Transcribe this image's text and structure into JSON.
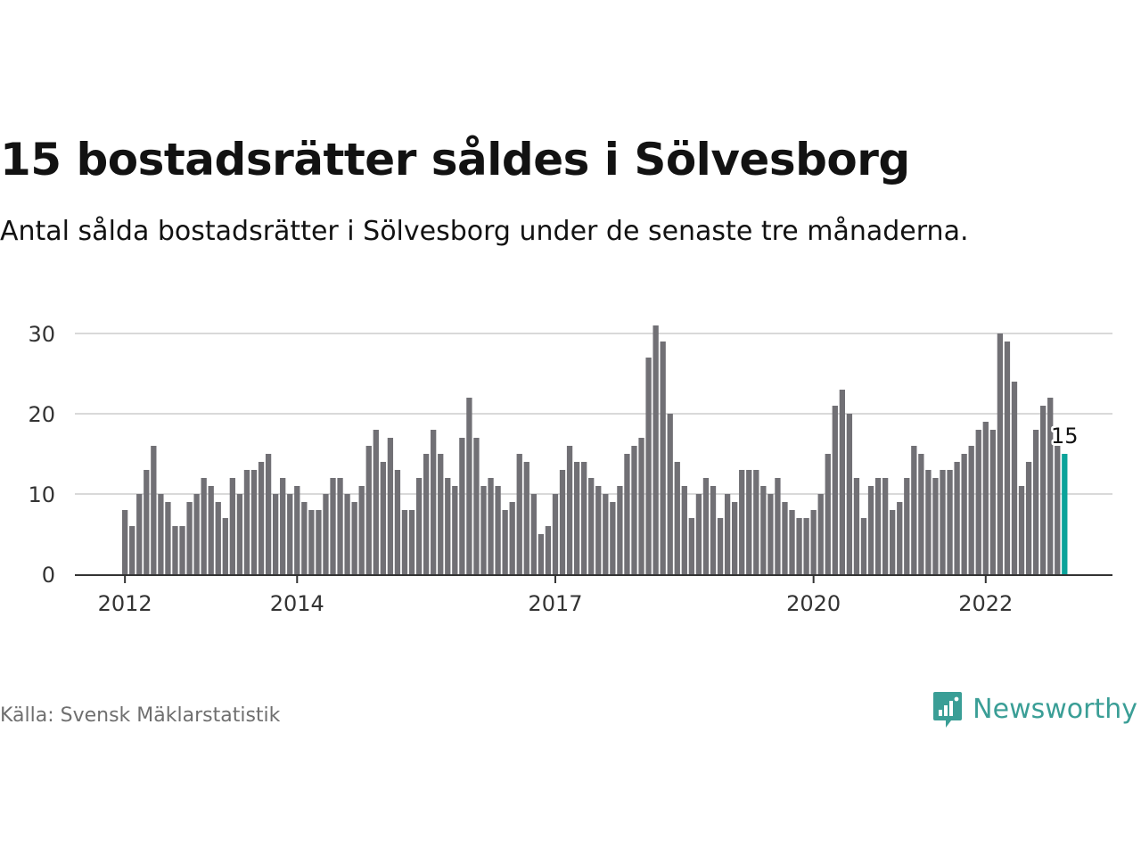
{
  "title": "15 bostadsrätter såldes i Sölvesborg",
  "subtitle": "Antal sålda bostadsrätter i Sölvesborg under de senaste tre månaderna.",
  "source": "Källa: Svensk Mäklarstatistik",
  "brand": {
    "name": "Newsworthy",
    "icon": "newsworthy-logo-icon",
    "color": "#3a9e96"
  },
  "colors": {
    "bar": "#717075",
    "highlight": "#0aa39a",
    "grid": "#d9d9d9",
    "axis": "#333333"
  },
  "chart_data": {
    "type": "bar",
    "title": "15 bostadsrätter såldes i Sölvesborg",
    "subtitle": "Antal sålda bostadsrätter i Sölvesborg under de senaste tre månaderna.",
    "xlabel": "",
    "ylabel": "",
    "x_start": "2011-12",
    "x_interval": "month",
    "ylim": [
      0,
      30
    ],
    "yticks": [
      0,
      10,
      20,
      30
    ],
    "xticks": [
      {
        "label": "2012",
        "index": 0
      },
      {
        "label": "2014",
        "index": 24
      },
      {
        "label": "2017",
        "index": 60
      },
      {
        "label": "2020",
        "index": 96
      },
      {
        "label": "2022",
        "index": 120
      }
    ],
    "grid": true,
    "legend": "none",
    "values": [
      8,
      6,
      10,
      13,
      16,
      10,
      9,
      6,
      6,
      9,
      10,
      12,
      11,
      9,
      7,
      12,
      10,
      13,
      13,
      14,
      15,
      10,
      12,
      10,
      11,
      9,
      8,
      8,
      10,
      12,
      12,
      10,
      9,
      11,
      16,
      18,
      14,
      17,
      13,
      8,
      8,
      12,
      15,
      18,
      15,
      12,
      11,
      17,
      22,
      17,
      11,
      12,
      11,
      8,
      9,
      15,
      14,
      10,
      5,
      6,
      10,
      13,
      16,
      14,
      14,
      12,
      11,
      10,
      9,
      11,
      15,
      16,
      17,
      27,
      31,
      29,
      20,
      14,
      11,
      7,
      10,
      12,
      11,
      7,
      10,
      9,
      13,
      13,
      13,
      11,
      10,
      12,
      9,
      8,
      7,
      7,
      8,
      10,
      15,
      21,
      23,
      20,
      12,
      7,
      11,
      12,
      12,
      8,
      9,
      12,
      16,
      15,
      13,
      12,
      13,
      13,
      14,
      15,
      16,
      18,
      19,
      18,
      30,
      29,
      24,
      11,
      14,
      18,
      21,
      22,
      16,
      15
    ],
    "highlight_index": 131,
    "annotation": {
      "text": "15",
      "index": 131
    }
  }
}
